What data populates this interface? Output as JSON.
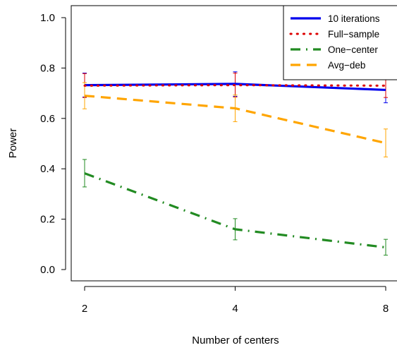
{
  "chart_data": {
    "type": "line",
    "xlabel": "Number of centers",
    "ylabel": "Power",
    "x": [
      2,
      4,
      8
    ],
    "x_tick_labels": [
      "2",
      "4",
      "8"
    ],
    "ylim": [
      0.0,
      1.0
    ],
    "y_ticks": [
      0.0,
      0.2,
      0.4,
      0.6,
      0.8,
      1.0
    ],
    "y_tick_labels": [
      "0.0",
      "0.2",
      "0.4",
      "0.6",
      "0.8",
      "1.0"
    ],
    "grid": false,
    "legend_position": "top-right",
    "series": [
      {
        "name": "10 iterations",
        "color": "#0000ee",
        "line_style": "solid",
        "values": [
          0.732,
          0.737,
          0.713
        ],
        "err_low": [
          0.685,
          0.688,
          0.662
        ],
        "err_high": [
          0.78,
          0.785,
          0.765
        ]
      },
      {
        "name": "Full−sample",
        "color": "#dd0000",
        "line_style": "dotted",
        "values": [
          0.73,
          0.732,
          0.73
        ],
        "err_low": [
          0.683,
          0.685,
          0.683
        ],
        "err_high": [
          0.778,
          0.78,
          0.778
        ]
      },
      {
        "name": "One−center",
        "color": "#228b22",
        "line_style": "dashdot",
        "values": [
          0.382,
          0.16,
          0.088
        ],
        "err_low": [
          0.328,
          0.118,
          0.057
        ],
        "err_high": [
          0.437,
          0.202,
          0.12
        ]
      },
      {
        "name": "Avg−deb",
        "color": "#ffa500",
        "line_style": "dashed",
        "values": [
          0.69,
          0.64,
          0.502
        ],
        "err_low": [
          0.638,
          0.587,
          0.447
        ],
        "err_high": [
          0.742,
          0.693,
          0.558
        ]
      }
    ]
  }
}
